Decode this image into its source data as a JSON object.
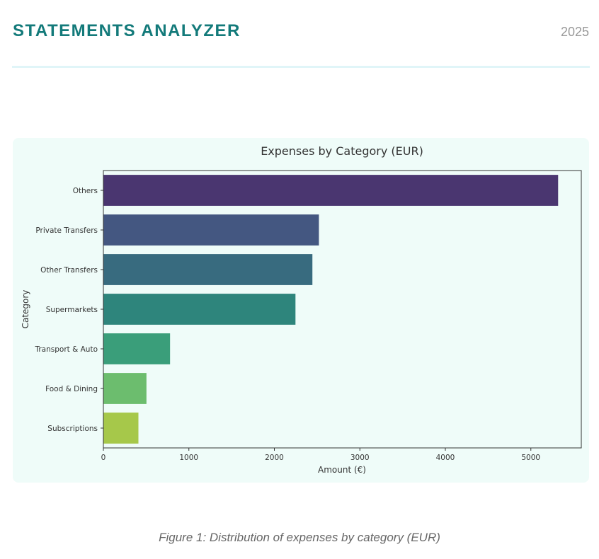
{
  "header": {
    "title": "STATEMENTS ANALYZER",
    "year": "2025"
  },
  "caption": "Figure 1: Distribution of expenses by category (EUR)",
  "chart_data": {
    "type": "bar",
    "orientation": "horizontal",
    "title": "Expenses by Category (EUR)",
    "xlabel": "Amount (€)",
    "ylabel": "Category",
    "categories": [
      "Others",
      "Private Transfers",
      "Other Transfers",
      "Supermarkets",
      "Transport & Auto",
      "Food & Dining",
      "Subscriptions"
    ],
    "values": [
      5323,
      2525,
      2449,
      2251,
      784,
      508,
      414
    ],
    "colors": [
      "#4a3670",
      "#445781",
      "#386b7f",
      "#2e857c",
      "#3a9e7a",
      "#6cbd6e",
      "#a6c84a"
    ],
    "xlim": [
      0,
      5590
    ],
    "xticks": [
      0,
      1000,
      2000,
      3000,
      4000,
      5000
    ],
    "grid": false
  }
}
